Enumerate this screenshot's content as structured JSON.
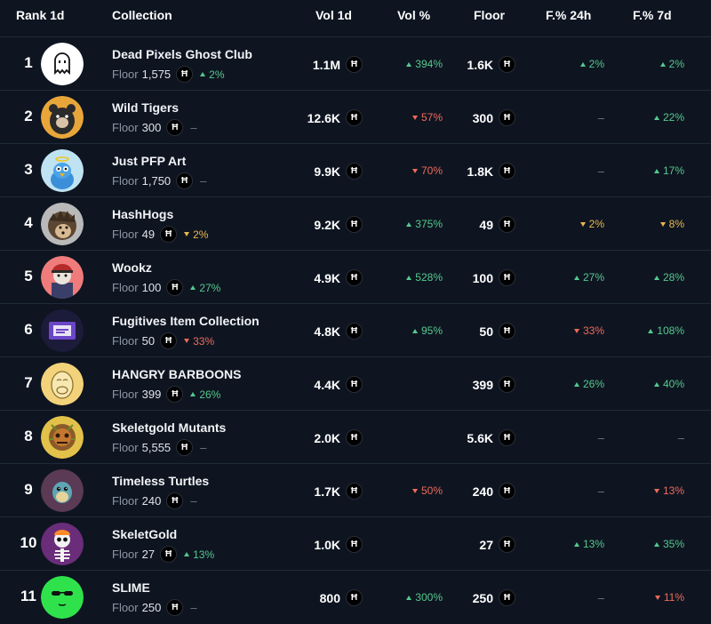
{
  "header": {
    "rank": "Rank 1d",
    "collection": "Collection",
    "vol": "Vol 1d",
    "volp": "Vol %",
    "floor": "Floor",
    "f24": "F.% 24h",
    "f7": "F.% 7d"
  },
  "floor_label": "Floor",
  "hbar_symbol": "Ħ",
  "colors": {
    "up": "#55c98d",
    "down": "#ef6a5a",
    "warn": "#e9b84b",
    "bg": "#0e1521"
  },
  "rows": [
    {
      "rank": "1",
      "name": "Dead Pixels Ghost Club",
      "floor": "1,575",
      "floor_change": {
        "dir": "up",
        "text": "2%"
      },
      "vol": "1.1M",
      "vol_pct": {
        "dir": "up",
        "text": "394%"
      },
      "floor_price": "1.6K",
      "f24": {
        "dir": "up",
        "text": "2%"
      },
      "f7": {
        "dir": "up",
        "text": "2%"
      },
      "avatar": "ghost-avatar"
    },
    {
      "rank": "2",
      "name": "Wild Tigers",
      "floor": "300",
      "floor_change": {
        "dir": "none",
        "text": "–"
      },
      "vol": "12.6K",
      "vol_pct": {
        "dir": "down",
        "text": "57%"
      },
      "floor_price": "300",
      "f24": {
        "dir": "none",
        "text": "–"
      },
      "f7": {
        "dir": "up",
        "text": "22%"
      },
      "avatar": "tiger-avatar"
    },
    {
      "rank": "3",
      "name": "Just PFP Art",
      "floor": "1,750",
      "floor_change": {
        "dir": "none",
        "text": "–"
      },
      "vol": "9.9K",
      "vol_pct": {
        "dir": "down",
        "text": "70%"
      },
      "floor_price": "1.8K",
      "f24": {
        "dir": "none",
        "text": "–"
      },
      "f7": {
        "dir": "up",
        "text": "17%"
      },
      "avatar": "bird-avatar"
    },
    {
      "rank": "4",
      "name": "HashHogs",
      "floor": "49",
      "floor_change": {
        "dir": "warn",
        "text": "2%"
      },
      "vol": "9.2K",
      "vol_pct": {
        "dir": "up",
        "text": "375%"
      },
      "floor_price": "49",
      "f24": {
        "dir": "warn",
        "text": "2%"
      },
      "f7": {
        "dir": "warn",
        "text": "8%"
      },
      "avatar": "hedgehog-avatar"
    },
    {
      "rank": "5",
      "name": "Wookz",
      "floor": "100",
      "floor_change": {
        "dir": "up",
        "text": "27%"
      },
      "vol": "4.9K",
      "vol_pct": {
        "dir": "up",
        "text": "528%"
      },
      "floor_price": "100",
      "f24": {
        "dir": "up",
        "text": "27%"
      },
      "f7": {
        "dir": "up",
        "text": "28%"
      },
      "avatar": "wookz-avatar"
    },
    {
      "rank": "6",
      "name": "Fugitives Item Collection",
      "floor": "50",
      "floor_change": {
        "dir": "down",
        "text": "33%"
      },
      "vol": "4.8K",
      "vol_pct": {
        "dir": "up",
        "text": "95%"
      },
      "floor_price": "50",
      "f24": {
        "dir": "down",
        "text": "33%"
      },
      "f7": {
        "dir": "up",
        "text": "108%"
      },
      "avatar": "fugitives-avatar"
    },
    {
      "rank": "7",
      "name": "HANGRY BARBOONS",
      "floor": "399",
      "floor_change": {
        "dir": "up",
        "text": "26%"
      },
      "vol": "4.4K",
      "vol_pct": {
        "dir": "none",
        "text": ""
      },
      "floor_price": "399",
      "f24": {
        "dir": "up",
        "text": "26%"
      },
      "f7": {
        "dir": "up",
        "text": "40%"
      },
      "avatar": "baboon-avatar"
    },
    {
      "rank": "8",
      "name": "Skeletgold Mutants",
      "floor": "5,555",
      "floor_change": {
        "dir": "none",
        "text": "–"
      },
      "vol": "2.0K",
      "vol_pct": {
        "dir": "none",
        "text": ""
      },
      "floor_price": "5.6K",
      "f24": {
        "dir": "none",
        "text": "–"
      },
      "f7": {
        "dir": "none",
        "text": "–"
      },
      "avatar": "mutant-avatar"
    },
    {
      "rank": "9",
      "name": "Timeless Turtles",
      "floor": "240",
      "floor_change": {
        "dir": "none",
        "text": "–"
      },
      "vol": "1.7K",
      "vol_pct": {
        "dir": "down",
        "text": "50%"
      },
      "floor_price": "240",
      "f24": {
        "dir": "none",
        "text": "–"
      },
      "f7": {
        "dir": "down",
        "text": "13%"
      },
      "avatar": "turtle-avatar"
    },
    {
      "rank": "10",
      "name": "SkeletGold",
      "floor": "27",
      "floor_change": {
        "dir": "up",
        "text": "13%"
      },
      "vol": "1.0K",
      "vol_pct": {
        "dir": "none",
        "text": ""
      },
      "floor_price": "27",
      "f24": {
        "dir": "up",
        "text": "13%"
      },
      "f7": {
        "dir": "up",
        "text": "35%"
      },
      "avatar": "skeleton-avatar"
    },
    {
      "rank": "11",
      "name": "SLIME",
      "floor": "250",
      "floor_change": {
        "dir": "none",
        "text": "–"
      },
      "vol": "800",
      "vol_pct": {
        "dir": "up",
        "text": "300%"
      },
      "floor_price": "250",
      "f24": {
        "dir": "none",
        "text": "–"
      },
      "f7": {
        "dir": "down",
        "text": "11%"
      },
      "avatar": "slime-avatar"
    }
  ]
}
